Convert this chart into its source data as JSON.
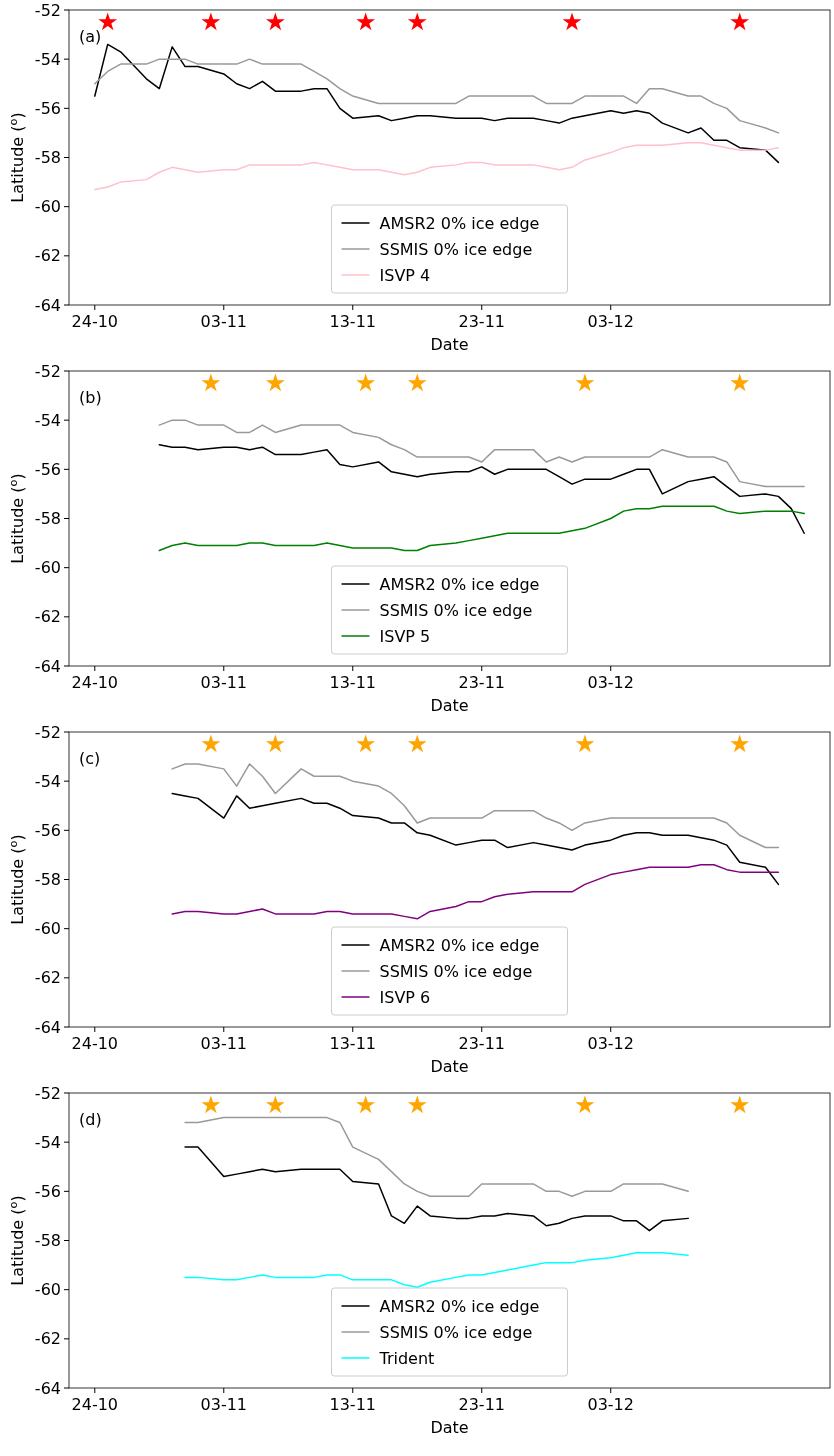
{
  "chart_data": [
    {
      "type": "line",
      "annotations": [
        "(a)"
      ],
      "xlabel": "Date",
      "ylabel": "Latitude ($^{o}$)",
      "xlim": [
        "--10-22",
        "--12-20"
      ],
      "xticks": [
        {
          "value": "--10-24",
          "label": "24-10"
        },
        {
          "value": "--11-03",
          "label": "03-11"
        },
        {
          "value": "--11-13",
          "label": "13-11"
        },
        {
          "value": "--11-23",
          "label": "23-11"
        },
        {
          "value": "--12-03",
          "label": "03-12"
        }
      ],
      "ylim": [
        -64,
        -52
      ],
      "yticks": [
        -64,
        -62,
        -60,
        -58,
        -56,
        -54,
        -52
      ],
      "legend": "bottom",
      "series": [
        {
          "name": "AMSR2 0% ice edge",
          "color": "#000000",
          "x": [
            "--10-24",
            "--10-25",
            "--10-26",
            "--10-28",
            "--10-29",
            "--10-30",
            "--10-31",
            "--11-01",
            "--11-03",
            "--11-04",
            "--11-05",
            "--11-06",
            "--11-07",
            "--11-09",
            "--11-10",
            "--11-11",
            "--11-12",
            "--11-13",
            "--11-15",
            "--11-16",
            "--11-17",
            "--11-18",
            "--11-19",
            "--11-21",
            "--11-22",
            "--11-23",
            "--11-24",
            "--11-25",
            "--11-27",
            "--11-28",
            "--11-29",
            "--11-30",
            "--12-01",
            "--12-03",
            "--12-04",
            "--12-05",
            "--12-06",
            "--12-07",
            "--12-09",
            "--12-10",
            "--12-11",
            "--12-12",
            "--12-13",
            "--12-15",
            "--12-16"
          ],
          "values": [
            -55.5,
            -53.4,
            -53.7,
            -54.8,
            -55.2,
            -53.5,
            -54.3,
            -54.3,
            -54.6,
            -55.0,
            -55.2,
            -54.9,
            -55.3,
            -55.3,
            -55.2,
            -55.2,
            -56.0,
            -56.4,
            -56.3,
            -56.5,
            -56.4,
            -56.3,
            -56.3,
            -56.4,
            -56.4,
            -56.4,
            -56.5,
            -56.4,
            -56.4,
            -56.5,
            -56.6,
            -56.4,
            -56.3,
            -56.1,
            -56.2,
            -56.1,
            -56.2,
            -56.6,
            -57.0,
            -56.8,
            -57.3,
            -57.3,
            -57.6,
            -57.7,
            -58.2
          ]
        },
        {
          "name": "SSMIS 0% ice edge",
          "color": "#999999",
          "x": [
            "--10-24",
            "--10-25",
            "--10-26",
            "--10-28",
            "--10-29",
            "--10-30",
            "--10-31",
            "--11-01",
            "--11-03",
            "--11-04",
            "--11-05",
            "--11-06",
            "--11-07",
            "--11-09",
            "--11-10",
            "--11-11",
            "--11-12",
            "--11-13",
            "--11-15",
            "--11-16",
            "--11-17",
            "--11-18",
            "--11-19",
            "--11-21",
            "--11-22",
            "--11-23",
            "--11-24",
            "--11-25",
            "--11-27",
            "--11-28",
            "--11-29",
            "--11-30",
            "--12-01",
            "--12-03",
            "--12-04",
            "--12-05",
            "--12-06",
            "--12-07",
            "--12-09",
            "--12-10",
            "--12-11",
            "--12-12",
            "--12-13",
            "--12-15",
            "--12-16"
          ],
          "values": [
            -55.0,
            -54.5,
            -54.2,
            -54.2,
            -54.0,
            -54.0,
            -54.0,
            -54.2,
            -54.2,
            -54.2,
            -54.0,
            -54.2,
            -54.2,
            -54.2,
            -54.5,
            -54.8,
            -55.2,
            -55.5,
            -55.8,
            -55.8,
            -55.8,
            -55.8,
            -55.8,
            -55.8,
            -55.5,
            -55.5,
            -55.5,
            -55.5,
            -55.5,
            -55.8,
            -55.8,
            -55.8,
            -55.5,
            -55.5,
            -55.5,
            -55.8,
            -55.2,
            -55.2,
            -55.5,
            -55.5,
            -55.8,
            -56.0,
            -56.5,
            -56.8,
            -57.0
          ]
        },
        {
          "name": "ISVP 4",
          "color": "#ffc0cb",
          "x": [
            "--10-24",
            "--10-25",
            "--10-26",
            "--10-28",
            "--10-29",
            "--10-30",
            "--10-31",
            "--11-01",
            "--11-03",
            "--11-04",
            "--11-05",
            "--11-06",
            "--11-07",
            "--11-09",
            "--11-10",
            "--11-11",
            "--11-12",
            "--11-13",
            "--11-15",
            "--11-16",
            "--11-17",
            "--11-18",
            "--11-19",
            "--11-21",
            "--11-22",
            "--11-23",
            "--11-24",
            "--11-25",
            "--11-27",
            "--11-28",
            "--11-29",
            "--11-30",
            "--12-01",
            "--12-03",
            "--12-04",
            "--12-05",
            "--12-06",
            "--12-07",
            "--12-09",
            "--12-10",
            "--12-11",
            "--12-12",
            "--12-13",
            "--12-15",
            "--12-16"
          ],
          "values": [
            -59.3,
            -59.2,
            -59.0,
            -58.9,
            -58.6,
            -58.4,
            -58.5,
            -58.6,
            -58.5,
            -58.5,
            -58.3,
            -58.3,
            -58.3,
            -58.3,
            -58.2,
            -58.3,
            -58.4,
            -58.5,
            -58.5,
            -58.6,
            -58.7,
            -58.6,
            -58.4,
            -58.3,
            -58.2,
            -58.2,
            -58.3,
            -58.3,
            -58.3,
            -58.4,
            -58.5,
            -58.4,
            -58.1,
            -57.8,
            -57.6,
            -57.5,
            -57.5,
            -57.5,
            -57.4,
            -57.4,
            -57.5,
            -57.6,
            -57.7,
            -57.7,
            -57.6
          ]
        },
        {
          "type": "scatter",
          "marker": "star",
          "color": "#ff0000",
          "x": [
            "--10-25",
            "--11-02",
            "--11-07",
            "--11-14",
            "--11-18",
            "--11-30",
            "--12-13"
          ],
          "values": [
            -52.5,
            -52.5,
            -52.5,
            -52.5,
            -52.5,
            -52.5,
            -52.5
          ]
        }
      ]
    },
    {
      "type": "line",
      "annotations": [
        "(b)"
      ],
      "xlabel": "Date",
      "ylabel": "Latitude ($^{o}$)",
      "xlim": [
        "--10-22",
        "--12-20"
      ],
      "xticks": [
        {
          "value": "--10-24",
          "label": "24-10"
        },
        {
          "value": "--11-03",
          "label": "03-11"
        },
        {
          "value": "--11-13",
          "label": "13-11"
        },
        {
          "value": "--11-23",
          "label": "23-11"
        },
        {
          "value": "--12-03",
          "label": "03-12"
        }
      ],
      "ylim": [
        -64,
        -52
      ],
      "yticks": [
        -64,
        -62,
        -60,
        -58,
        -56,
        -54,
        -52
      ],
      "legend": "bottom",
      "series": [
        {
          "name": "AMSR2 0% ice edge",
          "color": "#000000",
          "x": [
            "--10-29",
            "--10-30",
            "--10-31",
            "--11-01",
            "--11-03",
            "--11-04",
            "--11-05",
            "--11-06",
            "--11-07",
            "--11-09",
            "--11-10",
            "--11-11",
            "--11-12",
            "--11-13",
            "--11-15",
            "--11-16",
            "--11-17",
            "--11-18",
            "--11-19",
            "--11-21",
            "--11-22",
            "--11-23",
            "--11-24",
            "--11-25",
            "--11-27",
            "--11-28",
            "--11-29",
            "--11-30",
            "--12-01",
            "--12-03",
            "--12-04",
            "--12-05",
            "--12-06",
            "--12-07",
            "--12-09",
            "--12-10",
            "--12-11",
            "--12-12",
            "--12-13",
            "--12-15",
            "--12-16",
            "--12-17",
            "--12-18"
          ],
          "values": [
            -55.0,
            -55.1,
            -55.1,
            -55.2,
            -55.1,
            -55.1,
            -55.2,
            -55.1,
            -55.4,
            -55.4,
            -55.3,
            -55.2,
            -55.8,
            -55.9,
            -55.7,
            -56.1,
            -56.2,
            -56.3,
            -56.2,
            -56.1,
            -56.1,
            -55.9,
            -56.2,
            -56.0,
            -56.0,
            -56.0,
            -56.3,
            -56.6,
            -56.4,
            -56.4,
            -56.2,
            -56.0,
            -56.0,
            -57.0,
            -56.5,
            -56.4,
            -56.3,
            -56.7,
            -57.1,
            -57.0,
            -57.1,
            -57.6,
            -58.6
          ]
        },
        {
          "name": "SSMIS 0% ice edge",
          "color": "#999999",
          "x": [
            "--10-29",
            "--10-30",
            "--10-31",
            "--11-01",
            "--11-03",
            "--11-04",
            "--11-05",
            "--11-06",
            "--11-07",
            "--11-09",
            "--11-10",
            "--11-11",
            "--11-12",
            "--11-13",
            "--11-15",
            "--11-16",
            "--11-17",
            "--11-18",
            "--11-19",
            "--11-21",
            "--11-22",
            "--11-23",
            "--11-24",
            "--11-25",
            "--11-27",
            "--11-28",
            "--11-29",
            "--11-30",
            "--12-01",
            "--12-03",
            "--12-04",
            "--12-05",
            "--12-06",
            "--12-07",
            "--12-09",
            "--12-10",
            "--12-11",
            "--12-12",
            "--12-13",
            "--12-15",
            "--12-16",
            "--12-17",
            "--12-18"
          ],
          "values": [
            -54.2,
            -54.0,
            -54.0,
            -54.2,
            -54.2,
            -54.5,
            -54.5,
            -54.2,
            -54.5,
            -54.2,
            -54.2,
            -54.2,
            -54.2,
            -54.5,
            -54.7,
            -55.0,
            -55.2,
            -55.5,
            -55.5,
            -55.5,
            -55.5,
            -55.7,
            -55.2,
            -55.2,
            -55.2,
            -55.7,
            -55.5,
            -55.7,
            -55.5,
            -55.5,
            -55.5,
            -55.5,
            -55.5,
            -55.2,
            -55.5,
            -55.5,
            -55.5,
            -55.7,
            -56.5,
            -56.7,
            -56.7,
            -56.7,
            -56.7
          ]
        },
        {
          "name": "ISVP 5",
          "color": "#008000",
          "x": [
            "--10-29",
            "--10-30",
            "--10-31",
            "--11-01",
            "--11-03",
            "--11-04",
            "--11-05",
            "--11-06",
            "--11-07",
            "--11-09",
            "--11-10",
            "--11-11",
            "--11-12",
            "--11-13",
            "--11-15",
            "--11-16",
            "--11-17",
            "--11-18",
            "--11-19",
            "--11-21",
            "--11-22",
            "--11-23",
            "--11-24",
            "--11-25",
            "--11-27",
            "--11-28",
            "--11-29",
            "--11-30",
            "--12-01",
            "--12-03",
            "--12-04",
            "--12-05",
            "--12-06",
            "--12-07",
            "--12-09",
            "--12-10",
            "--12-11",
            "--12-12",
            "--12-13",
            "--12-15",
            "--12-16",
            "--12-17",
            "--12-18"
          ],
          "values": [
            -59.3,
            -59.1,
            -59.0,
            -59.1,
            -59.1,
            -59.1,
            -59.0,
            -59.0,
            -59.1,
            -59.1,
            -59.1,
            -59.0,
            -59.1,
            -59.2,
            -59.2,
            -59.2,
            -59.3,
            -59.3,
            -59.1,
            -59.0,
            -58.9,
            -58.8,
            -58.7,
            -58.6,
            -58.6,
            -58.6,
            -58.6,
            -58.5,
            -58.4,
            -58.0,
            -57.7,
            -57.6,
            -57.6,
            -57.5,
            -57.5,
            -57.5,
            -57.5,
            -57.7,
            -57.8,
            -57.7,
            -57.7,
            -57.7,
            -57.8
          ]
        },
        {
          "type": "scatter",
          "marker": "star",
          "color": "#ffa500",
          "x": [
            "--11-02",
            "--11-07",
            "--11-14",
            "--11-18",
            "--12-01",
            "--12-13"
          ],
          "values": [
            -52.5,
            -52.5,
            -52.5,
            -52.5,
            -52.5,
            -52.5
          ]
        }
      ]
    },
    {
      "type": "line",
      "annotations": [
        "(c)"
      ],
      "xlabel": "Date",
      "ylabel": "Latitude ($^{o}$)",
      "xlim": [
        "--10-22",
        "--12-20"
      ],
      "xticks": [
        {
          "value": "--10-24",
          "label": "24-10"
        },
        {
          "value": "--11-03",
          "label": "03-11"
        },
        {
          "value": "--11-13",
          "label": "13-11"
        },
        {
          "value": "--11-23",
          "label": "23-11"
        },
        {
          "value": "--12-03",
          "label": "03-12"
        }
      ],
      "ylim": [
        -64,
        -52
      ],
      "yticks": [
        -64,
        -62,
        -60,
        -58,
        -56,
        -54,
        -52
      ],
      "legend": "bottom",
      "series": [
        {
          "name": "AMSR2 0% ice edge",
          "color": "#000000",
          "x": [
            "--10-30",
            "--10-31",
            "--11-01",
            "--11-03",
            "--11-04",
            "--11-05",
            "--11-06",
            "--11-07",
            "--11-09",
            "--11-10",
            "--11-11",
            "--11-12",
            "--11-13",
            "--11-15",
            "--11-16",
            "--11-17",
            "--11-18",
            "--11-19",
            "--11-21",
            "--11-22",
            "--11-23",
            "--11-24",
            "--11-25",
            "--11-27",
            "--11-28",
            "--11-29",
            "--11-30",
            "--12-01",
            "--12-03",
            "--12-04",
            "--12-05",
            "--12-06",
            "--12-07",
            "--12-09",
            "--12-10",
            "--12-11",
            "--12-12",
            "--12-13",
            "--12-15",
            "--12-16"
          ],
          "values": [
            -54.5,
            -54.6,
            -54.7,
            -55.5,
            -54.6,
            -55.1,
            -55.0,
            -54.9,
            -54.7,
            -54.9,
            -54.9,
            -55.1,
            -55.4,
            -55.5,
            -55.7,
            -55.7,
            -56.1,
            -56.2,
            -56.6,
            -56.5,
            -56.4,
            -56.4,
            -56.7,
            -56.5,
            -56.6,
            -56.7,
            -56.8,
            -56.6,
            -56.4,
            -56.2,
            -56.1,
            -56.1,
            -56.2,
            -56.2,
            -56.3,
            -56.4,
            -56.6,
            -57.3,
            -57.5,
            -58.2
          ]
        },
        {
          "name": "SSMIS 0% ice edge",
          "color": "#999999",
          "x": [
            "--10-30",
            "--10-31",
            "--11-01",
            "--11-03",
            "--11-04",
            "--11-05",
            "--11-06",
            "--11-07",
            "--11-09",
            "--11-10",
            "--11-11",
            "--11-12",
            "--11-13",
            "--11-15",
            "--11-16",
            "--11-17",
            "--11-18",
            "--11-19",
            "--11-21",
            "--11-22",
            "--11-23",
            "--11-24",
            "--11-25",
            "--11-27",
            "--11-28",
            "--11-29",
            "--11-30",
            "--12-01",
            "--12-03",
            "--12-04",
            "--12-05",
            "--12-06",
            "--12-07",
            "--12-09",
            "--12-10",
            "--12-11",
            "--12-12",
            "--12-13",
            "--12-15",
            "--12-16"
          ],
          "values": [
            -53.5,
            -53.3,
            -53.3,
            -53.5,
            -54.2,
            -53.3,
            -53.8,
            -54.5,
            -53.5,
            -53.8,
            -53.8,
            -53.8,
            -54.0,
            -54.2,
            -54.5,
            -55.0,
            -55.7,
            -55.5,
            -55.5,
            -55.5,
            -55.5,
            -55.2,
            -55.2,
            -55.2,
            -55.5,
            -55.7,
            -56.0,
            -55.7,
            -55.5,
            -55.5,
            -55.5,
            -55.5,
            -55.5,
            -55.5,
            -55.5,
            -55.5,
            -55.7,
            -56.2,
            -56.7,
            -56.7
          ]
        },
        {
          "name": "ISVP 6",
          "color": "#800080",
          "x": [
            "--10-30",
            "--10-31",
            "--11-01",
            "--11-03",
            "--11-04",
            "--11-05",
            "--11-06",
            "--11-07",
            "--11-09",
            "--11-10",
            "--11-11",
            "--11-12",
            "--11-13",
            "--11-15",
            "--11-16",
            "--11-17",
            "--11-18",
            "--11-19",
            "--11-21",
            "--11-22",
            "--11-23",
            "--11-24",
            "--11-25",
            "--11-27",
            "--11-28",
            "--11-29",
            "--11-30",
            "--12-01",
            "--12-03",
            "--12-04",
            "--12-05",
            "--12-06",
            "--12-07",
            "--12-09",
            "--12-10",
            "--12-11",
            "--12-12",
            "--12-13",
            "--12-15",
            "--12-16"
          ],
          "values": [
            -59.4,
            -59.3,
            -59.3,
            -59.4,
            -59.4,
            -59.3,
            -59.2,
            -59.4,
            -59.4,
            -59.4,
            -59.3,
            -59.3,
            -59.4,
            -59.4,
            -59.4,
            -59.5,
            -59.6,
            -59.3,
            -59.1,
            -58.9,
            -58.9,
            -58.7,
            -58.6,
            -58.5,
            -58.5,
            -58.5,
            -58.5,
            -58.2,
            -57.8,
            -57.7,
            -57.6,
            -57.5,
            -57.5,
            -57.5,
            -57.4,
            -57.4,
            -57.6,
            -57.7,
            -57.7,
            -57.7
          ]
        },
        {
          "type": "scatter",
          "marker": "star",
          "color": "#ffa500",
          "x": [
            "--11-02",
            "--11-07",
            "--11-14",
            "--11-18",
            "--12-01",
            "--12-13"
          ],
          "values": [
            -52.5,
            -52.5,
            -52.5,
            -52.5,
            -52.5,
            -52.5
          ]
        }
      ]
    },
    {
      "type": "line",
      "annotations": [
        "(d)"
      ],
      "xlabel": "Date",
      "ylabel": "Latitude ($^{o}$)",
      "xlim": [
        "--10-22",
        "--12-20"
      ],
      "xticks": [
        {
          "value": "--10-24",
          "label": "24-10"
        },
        {
          "value": "--11-03",
          "label": "03-11"
        },
        {
          "value": "--11-13",
          "label": "13-11"
        },
        {
          "value": "--11-23",
          "label": "23-11"
        },
        {
          "value": "--12-03",
          "label": "03-12"
        }
      ],
      "ylim": [
        -64,
        -52
      ],
      "yticks": [
        -64,
        -62,
        -60,
        -58,
        -56,
        -54,
        -52
      ],
      "legend": "bottom",
      "series": [
        {
          "name": "AMSR2 0% ice edge",
          "color": "#000000",
          "x": [
            "--10-31",
            "--11-01",
            "--11-03",
            "--11-04",
            "--11-05",
            "--11-06",
            "--11-07",
            "--11-09",
            "--11-10",
            "--11-11",
            "--11-12",
            "--11-13",
            "--11-15",
            "--11-16",
            "--11-17",
            "--11-18",
            "--11-19",
            "--11-21",
            "--11-22",
            "--11-23",
            "--11-24",
            "--11-25",
            "--11-27",
            "--11-28",
            "--11-29",
            "--11-30",
            "--12-01",
            "--12-03",
            "--12-04",
            "--12-05",
            "--12-06",
            "--12-07",
            "--12-09"
          ],
          "values": [
            -54.2,
            -54.2,
            -55.4,
            -55.3,
            -55.2,
            -55.1,
            -55.2,
            -55.1,
            -55.1,
            -55.1,
            -55.1,
            -55.6,
            -55.7,
            -57.0,
            -57.3,
            -56.6,
            -57.0,
            -57.1,
            -57.1,
            -57.0,
            -57.0,
            -56.9,
            -57.0,
            -57.4,
            -57.3,
            -57.1,
            -57.0,
            -57.0,
            -57.2,
            -57.2,
            -57.6,
            -57.2,
            -57.1
          ]
        },
        {
          "name": "SSMIS 0% ice edge",
          "color": "#999999",
          "x": [
            "--10-31",
            "--11-01",
            "--11-03",
            "--11-04",
            "--11-05",
            "--11-06",
            "--11-07",
            "--11-09",
            "--11-10",
            "--11-11",
            "--11-12",
            "--11-13",
            "--11-15",
            "--11-16",
            "--11-17",
            "--11-18",
            "--11-19",
            "--11-21",
            "--11-22",
            "--11-23",
            "--11-24",
            "--11-25",
            "--11-27",
            "--11-28",
            "--11-29",
            "--11-30",
            "--12-01",
            "--12-03",
            "--12-04",
            "--12-05",
            "--12-06",
            "--12-07",
            "--12-09"
          ],
          "values": [
            -53.2,
            -53.2,
            -53.0,
            -53.0,
            -53.0,
            -53.0,
            -53.0,
            -53.0,
            -53.0,
            -53.0,
            -53.2,
            -54.2,
            -54.7,
            -55.2,
            -55.7,
            -56.0,
            -56.2,
            -56.2,
            -56.2,
            -55.7,
            -55.7,
            -55.7,
            -55.7,
            -56.0,
            -56.0,
            -56.2,
            -56.0,
            -56.0,
            -55.7,
            -55.7,
            -55.7,
            -55.7,
            -56.0
          ]
        },
        {
          "name": "Trident",
          "color": "#00ffff",
          "x": [
            "--10-31",
            "--11-01",
            "--11-03",
            "--11-04",
            "--11-05",
            "--11-06",
            "--11-07",
            "--11-09",
            "--11-10",
            "--11-11",
            "--11-12",
            "--11-13",
            "--11-15",
            "--11-16",
            "--11-17",
            "--11-18",
            "--11-19",
            "--11-21",
            "--11-22",
            "--11-23",
            "--11-24",
            "--11-25",
            "--11-27",
            "--11-28",
            "--11-29",
            "--11-30",
            "--12-01",
            "--12-03",
            "--12-04",
            "--12-05",
            "--12-06",
            "--12-07",
            "--12-09"
          ],
          "values": [
            -59.5,
            -59.5,
            -59.6,
            -59.6,
            -59.5,
            -59.4,
            -59.5,
            -59.5,
            -59.5,
            -59.4,
            -59.4,
            -59.6,
            -59.6,
            -59.6,
            -59.8,
            -59.9,
            -59.7,
            -59.5,
            -59.4,
            -59.4,
            -59.3,
            -59.2,
            -59.0,
            -58.9,
            -58.9,
            -58.9,
            -58.8,
            -58.7,
            -58.6,
            -58.5,
            -58.5,
            -58.5,
            -58.6
          ]
        },
        {
          "type": "scatter",
          "marker": "star",
          "color": "#ffa500",
          "x": [
            "--11-02",
            "--11-07",
            "--11-14",
            "--11-18",
            "--12-01",
            "--12-13"
          ],
          "values": [
            -52.5,
            -52.5,
            -52.5,
            -52.5,
            -52.5,
            -52.5
          ]
        }
      ]
    }
  ]
}
